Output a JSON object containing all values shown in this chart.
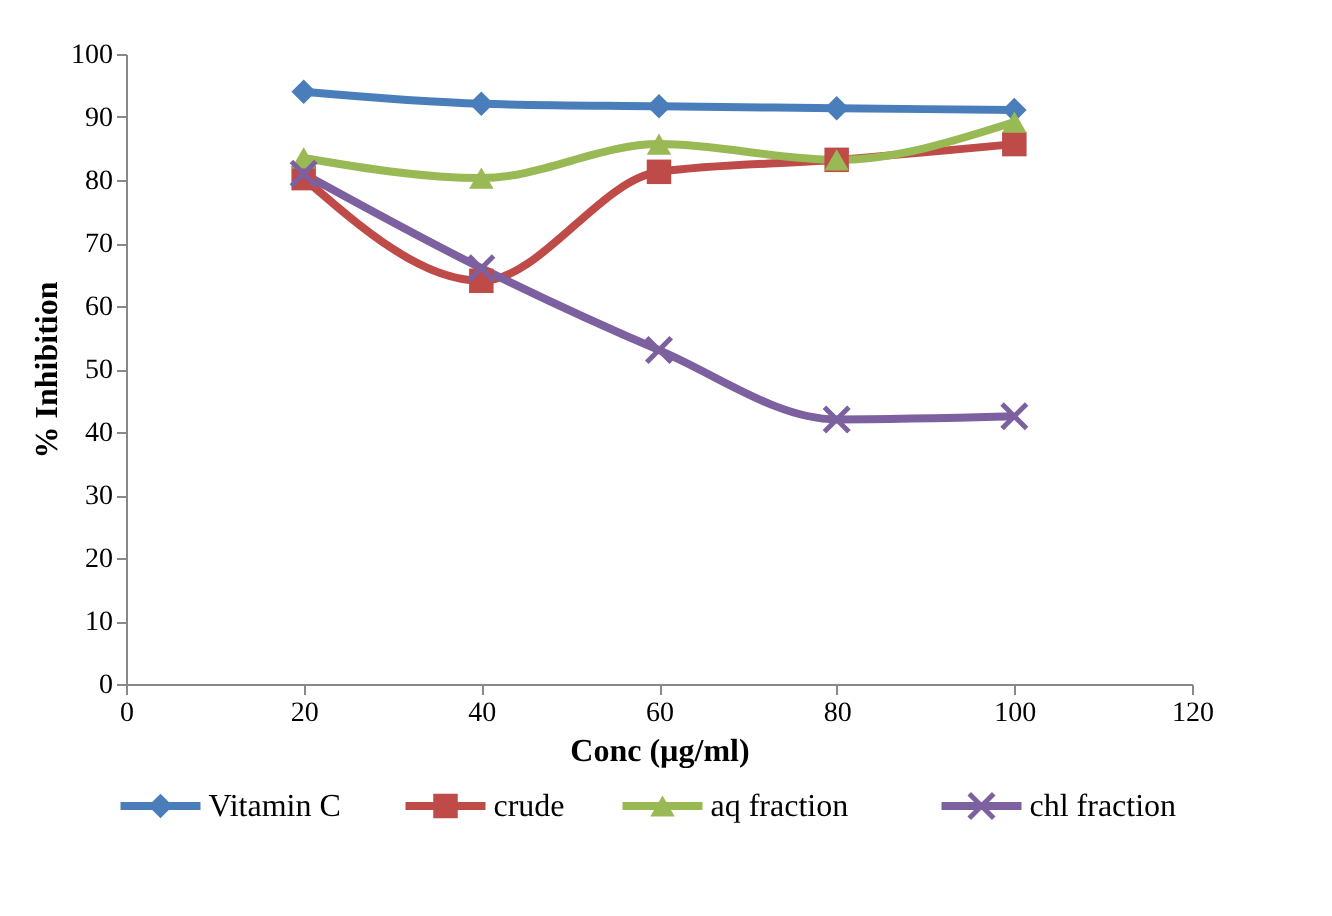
{
  "chart_data": {
    "type": "line",
    "xlabel": "Conc (µg/ml)",
    "ylabel": "% Inhibition",
    "x": [
      20,
      40,
      60,
      80,
      100
    ],
    "series": [
      {
        "name": "Vitamin C",
        "color": "#4a7ebb",
        "marker": "diamond",
        "values": [
          94.0,
          92.1,
          91.7,
          91.4,
          91.1
        ]
      },
      {
        "name": "crude",
        "color": "#be4b48",
        "marker": "square",
        "values": [
          80.3,
          64.0,
          81.3,
          83.2,
          85.7
        ]
      },
      {
        "name": "aq fraction",
        "color": "#98b954",
        "marker": "triangle",
        "values": [
          83.5,
          80.3,
          85.7,
          83.2,
          89.2
        ]
      },
      {
        "name": "chl fraction",
        "color": "#7d60a0",
        "marker": "cross",
        "values": [
          81.0,
          66.0,
          53.0,
          42.0,
          42.5
        ]
      }
    ],
    "xlim": [
      0,
      120
    ],
    "xticks": [
      0,
      20,
      40,
      60,
      80,
      100,
      120
    ],
    "ylim": [
      0,
      100
    ],
    "yticks": [
      0,
      10,
      20,
      30,
      40,
      50,
      60,
      70,
      80,
      90,
      100
    ],
    "grid": false,
    "legend": "bottom",
    "line_style": "solid"
  }
}
